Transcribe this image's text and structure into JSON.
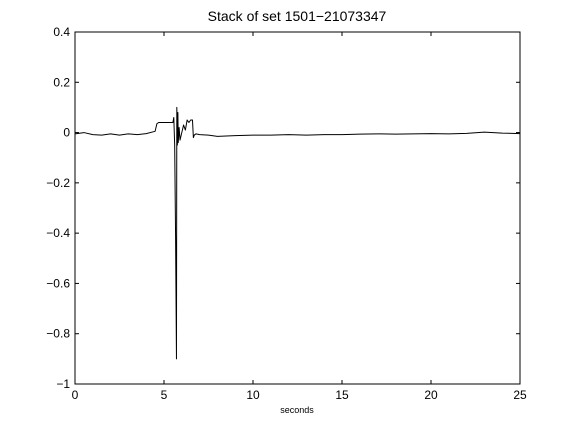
{
  "chart_data": {
    "type": "line",
    "title": "Stack of set 1501−21073347",
    "xlabel": "seconds",
    "ylabel": "",
    "xlim": [
      0,
      25
    ],
    "ylim": [
      -1,
      0.4
    ],
    "xticks": [
      0,
      5,
      10,
      15,
      20,
      25
    ],
    "yticks": [
      -1,
      -0.8,
      -0.6,
      -0.4,
      -0.2,
      0,
      0.2,
      0.4
    ],
    "xtick_labels": [
      "0",
      "5",
      "10",
      "15",
      "20",
      "25"
    ],
    "ytick_labels": [
      "−1",
      "−0.8",
      "−0.6",
      "−0.4",
      "−0.2",
      "0",
      "0.2",
      "0.4"
    ],
    "grid": false,
    "line_color": "#000000",
    "series": [
      {
        "x": [
          0,
          0.5,
          1.0,
          1.5,
          2.0,
          2.5,
          3.0,
          3.5,
          4.0,
          4.5,
          4.6,
          4.7,
          5.0,
          5.3,
          5.5,
          5.55,
          5.6,
          5.65,
          5.7,
          5.72,
          5.75,
          5.78,
          5.8,
          5.85,
          5.9,
          6.0,
          6.1,
          6.2,
          6.3,
          6.4,
          6.5,
          6.6,
          6.65,
          6.7,
          6.8,
          7.0,
          7.5,
          8.0,
          9.0,
          10.0,
          11.0,
          12.0,
          13.0,
          14.0,
          15.0,
          16.0,
          17.0,
          18.0,
          19.0,
          20.0,
          21.0,
          22.0,
          23.0,
          24.0,
          25.0
        ],
        "y": [
          -0.005,
          0.0,
          -0.008,
          -0.01,
          -0.005,
          -0.01,
          -0.005,
          -0.008,
          -0.004,
          0.005,
          0.035,
          0.04,
          0.04,
          0.04,
          0.04,
          0.06,
          -0.05,
          -0.41,
          -0.9,
          0.1,
          -0.05,
          0.08,
          -0.04,
          0.02,
          -0.03,
          0.0,
          0.03,
          0.01,
          0.05,
          0.04,
          0.05,
          0.05,
          -0.02,
          -0.01,
          -0.005,
          -0.008,
          -0.01,
          -0.015,
          -0.012,
          -0.01,
          -0.01,
          -0.008,
          -0.01,
          -0.008,
          -0.008,
          -0.006,
          -0.005,
          -0.006,
          -0.005,
          -0.004,
          -0.005,
          -0.003,
          0.002,
          -0.002,
          -0.004
        ]
      }
    ]
  }
}
